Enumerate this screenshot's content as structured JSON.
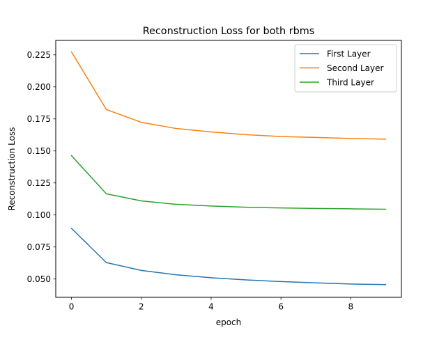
{
  "chart_data": {
    "type": "line",
    "title": "Reconstruction Loss for both rbms",
    "xlabel": "epoch",
    "ylabel": "Reconstruction Loss",
    "x": [
      0,
      1,
      2,
      3,
      4,
      5,
      6,
      7,
      8,
      9
    ],
    "xlim": [
      -0.45,
      9.45
    ],
    "ylim": [
      0.0357,
      0.2363
    ],
    "xticks": [
      0,
      2,
      4,
      6,
      8
    ],
    "xtick_labels": [
      "0",
      "2",
      "4",
      "6",
      "8"
    ],
    "yticks": [
      0.05,
      0.075,
      0.1,
      0.125,
      0.15,
      0.175,
      0.2,
      0.225
    ],
    "ytick_labels": [
      "0.050",
      "0.075",
      "0.100",
      "0.125",
      "0.150",
      "0.175",
      "0.200",
      "0.225"
    ],
    "grid": false,
    "legend_position": "top-right",
    "series": [
      {
        "name": "First Layer",
        "color": "#1f77b4",
        "values": [
          0.0895,
          0.0628,
          0.0567,
          0.0533,
          0.051,
          0.0493,
          0.048,
          0.047,
          0.0461,
          0.0456
        ]
      },
      {
        "name": "Second Layer",
        "color": "#ff7f0e",
        "values": [
          0.2273,
          0.1823,
          0.1723,
          0.1675,
          0.1648,
          0.1627,
          0.1612,
          0.1605,
          0.1597,
          0.1592
        ]
      },
      {
        "name": "Third Layer",
        "color": "#2ca02c",
        "values": [
          0.1463,
          0.1165,
          0.111,
          0.1083,
          0.107,
          0.106,
          0.1055,
          0.1051,
          0.1048,
          0.1045
        ]
      }
    ]
  }
}
